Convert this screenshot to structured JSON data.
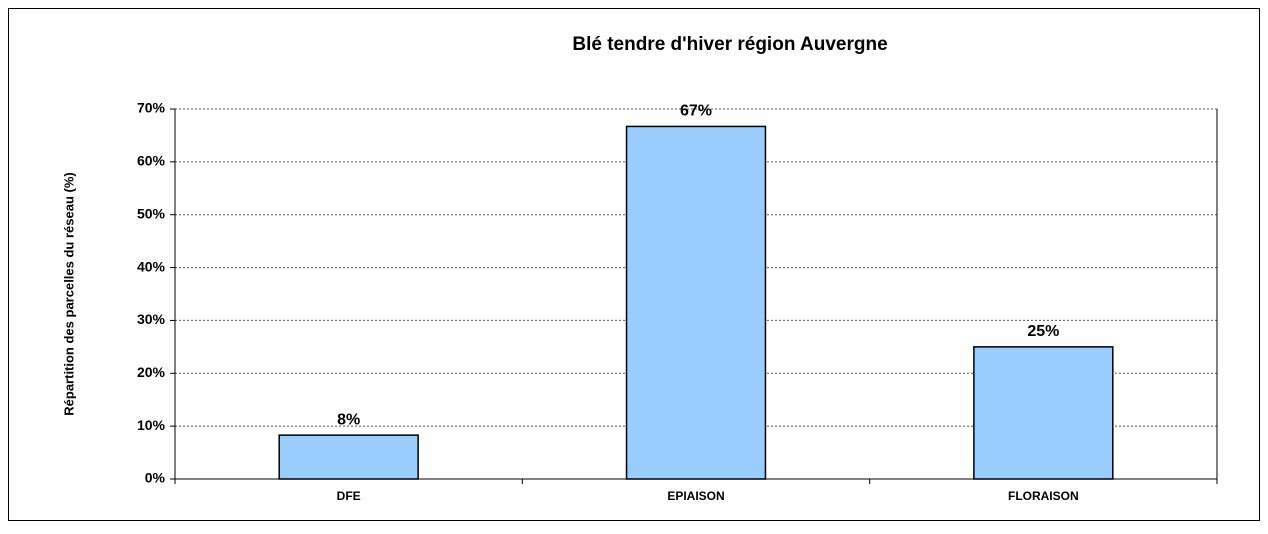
{
  "chart_data": {
    "type": "bar",
    "title": "Blé tendre d'hiver région Auvergne",
    "y_label": "Répartition des parcelles du réseau (%)",
    "categories": [
      "DFE",
      "EPIAISON",
      "FLORAISON"
    ],
    "values": [
      8.3,
      66.7,
      25
    ],
    "value_labels": [
      "8%",
      "67%",
      "25%"
    ],
    "color": "#99ccff",
    "ylim": [
      0,
      70
    ],
    "yticks": [
      {
        "value": 0,
        "label": "0%"
      },
      {
        "value": 10,
        "label": "10%"
      },
      {
        "value": 20,
        "label": "20%"
      },
      {
        "value": 30,
        "label": "30%"
      },
      {
        "value": 40,
        "label": "40%"
      },
      {
        "value": 50,
        "label": "50%"
      },
      {
        "value": 60,
        "label": "60%"
      },
      {
        "value": 70,
        "label": "70%"
      }
    ],
    "grid": true
  }
}
